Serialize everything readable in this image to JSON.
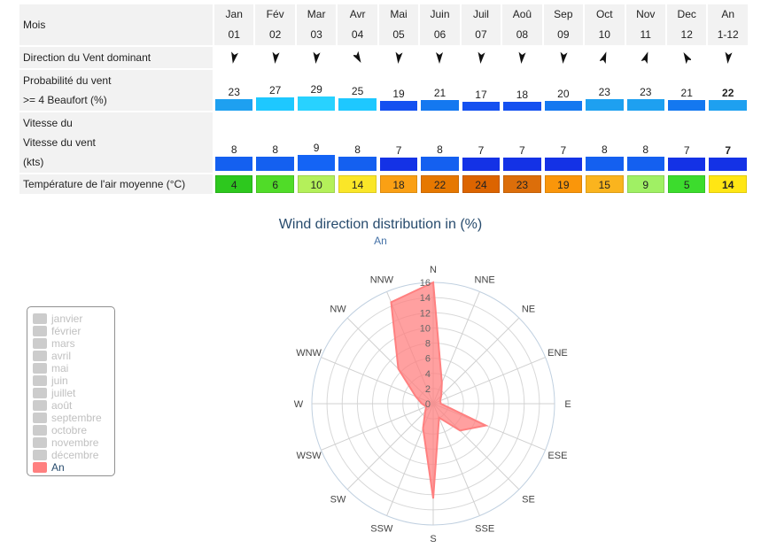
{
  "table": {
    "header_label": "Mois",
    "months": [
      "Jan",
      "Fév",
      "Mar",
      "Avr",
      "Mai",
      "Juin",
      "Juil",
      "Aoû",
      "Sep",
      "Oct",
      "Nov",
      "Dec",
      "An"
    ],
    "month_numbers": [
      "01",
      "02",
      "03",
      "04",
      "05",
      "06",
      "07",
      "08",
      "09",
      "10",
      "11",
      "12",
      "1-12"
    ],
    "direction_label": "Direction du Vent dominant",
    "direction_angles_deg": [
      10,
      5,
      5,
      330,
      5,
      0,
      5,
      5,
      5,
      200,
      200,
      150,
      5
    ],
    "probability_label_1": "Probabilité du vent",
    "probability_label_2": ">= 4 Beaufort (%)",
    "probability": [
      "23",
      "27",
      "29",
      "25",
      "19",
      "21",
      "17",
      "18",
      "20",
      "23",
      "23",
      "21",
      "22"
    ],
    "probability_colors": [
      "#1ea0f0",
      "#1ec8ff",
      "#28d2ff",
      "#1ec8ff",
      "#1450f0",
      "#1478f0",
      "#1450f0",
      "#1450f0",
      "#1478f0",
      "#1ea0f0",
      "#1ea0f0",
      "#1478f0",
      "#1ea0f0"
    ],
    "speed_label_1": "Vitesse du",
    "speed_label_2": "Vitesse du vent",
    "speed_label_3": "(kts)",
    "speed": [
      "8",
      "8",
      "9",
      "8",
      "7",
      "8",
      "7",
      "7",
      "7",
      "8",
      "8",
      "7",
      "7"
    ],
    "speed_colors": [
      "#1460f0",
      "#1460f0",
      "#1464f5",
      "#1460f0",
      "#1432e6",
      "#1460f0",
      "#1432e6",
      "#1432e6",
      "#1432e6",
      "#1460f0",
      "#1460f0",
      "#1432e6",
      "#1432e6"
    ],
    "temperature_label": "Température de l'air moyenne (°C)",
    "temperature": [
      "4",
      "6",
      "10",
      "14",
      "18",
      "22",
      "24",
      "23",
      "19",
      "15",
      "9",
      "5",
      "14"
    ],
    "temperature_colors": [
      "#2dc81e",
      "#50dc28",
      "#b4f05a",
      "#fae628",
      "#faa014",
      "#e67800",
      "#dc6400",
      "#dc6e0a",
      "#fa960a",
      "#fab41e",
      "#a0f064",
      "#3cdc2d",
      "#ffe614"
    ]
  },
  "rose_title": "Wind direction distribution in (%)",
  "rose_subtitle": "An",
  "legend_items": [
    "janvier",
    "février",
    "mars",
    "avril",
    "mai",
    "juin",
    "juillet",
    "août",
    "septembre",
    "octobre",
    "novembre",
    "décembre",
    "An"
  ],
  "chart_data": {
    "type": "radar",
    "title": "Wind direction distribution in (%)",
    "subtitle": "An",
    "directions": [
      "N",
      "NNE",
      "NE",
      "ENE",
      "E",
      "ESE",
      "SE",
      "SSE",
      "S",
      "SSW",
      "SW",
      "WSW",
      "W",
      "WNW",
      "NW",
      "NNW"
    ],
    "radial_ticks": [
      "0",
      "2",
      "4",
      "6",
      "8",
      "10",
      "12",
      "14",
      "16"
    ],
    "radial_max": 16,
    "series": [
      {
        "name": "An",
        "color": "#ff8080",
        "values": [
          16,
          3.0,
          1.5,
          1.0,
          1.0,
          7.5,
          5.0,
          2.0,
          12.5,
          3.5,
          1.5,
          1.0,
          1.5,
          2.5,
          6.5,
          14.5
        ]
      }
    ],
    "legend_position": "left"
  }
}
